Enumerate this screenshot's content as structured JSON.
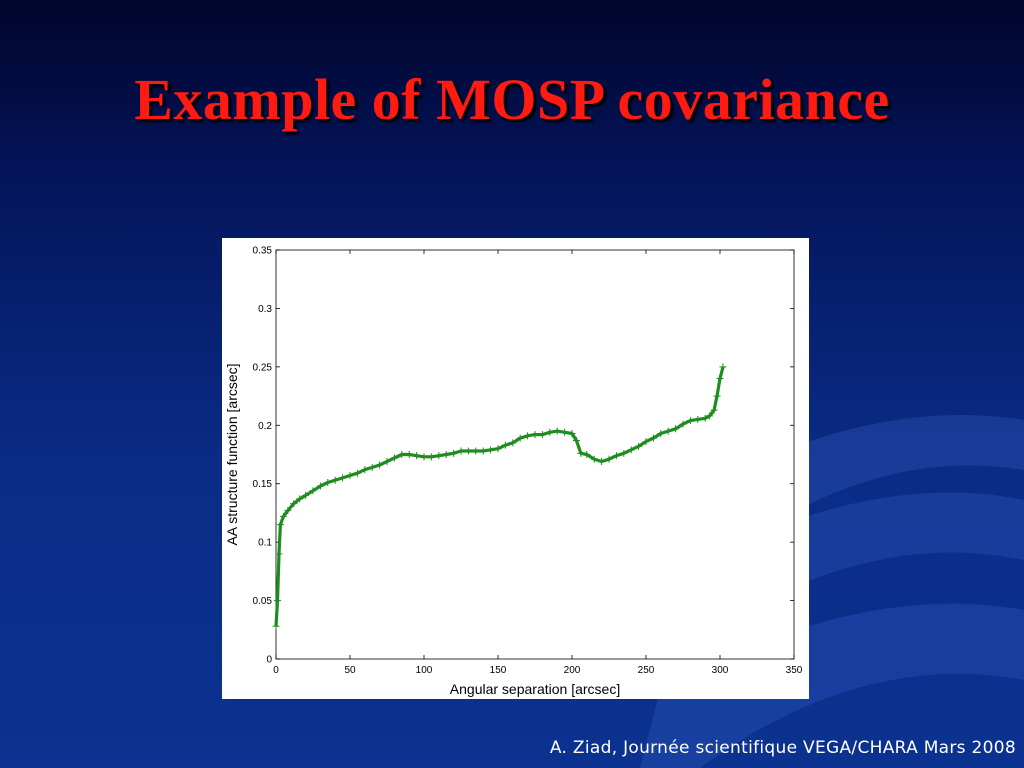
{
  "slide": {
    "title": "Example of MOSP covariance",
    "footer": "A. Ziad, Journée scientifique VEGA/CHARA Mars 2008"
  },
  "colors": {
    "title": "#ff1a12",
    "series": "#1e8c1e"
  },
  "chart_data": {
    "type": "line",
    "xlabel": "Angular separation [arcsec]",
    "ylabel": "AA structure function [arcsec]",
    "xlim": [
      0,
      350
    ],
    "ylim": [
      0,
      0.35
    ],
    "xticks": [
      "0",
      "50",
      "100",
      "150",
      "200",
      "250",
      "300",
      "350"
    ],
    "yticks": [
      "0",
      "0.05",
      "0.1",
      "0.15",
      "0.2",
      "0.25",
      "0.3",
      "0.35"
    ],
    "grid": false,
    "marker": "plus",
    "series": [
      {
        "x": [
          0,
          1,
          2,
          3,
          5,
          8,
          12,
          16,
          20,
          25,
          30,
          35,
          40,
          45,
          50,
          55,
          60,
          65,
          70,
          75,
          80,
          85,
          90,
          95,
          100,
          105,
          110,
          115,
          120,
          125,
          130,
          135,
          140,
          145,
          150,
          155,
          160,
          165,
          170,
          175,
          180,
          185,
          190,
          195,
          200,
          203,
          206,
          210,
          215,
          220,
          225,
          230,
          235,
          240,
          245,
          250,
          255,
          260,
          265,
          270,
          275,
          280,
          285,
          290,
          293,
          296,
          298,
          300,
          302
        ],
        "y": [
          0.028,
          0.05,
          0.09,
          0.115,
          0.122,
          0.127,
          0.133,
          0.137,
          0.14,
          0.144,
          0.148,
          0.151,
          0.153,
          0.155,
          0.157,
          0.159,
          0.162,
          0.164,
          0.166,
          0.169,
          0.172,
          0.175,
          0.175,
          0.174,
          0.173,
          0.173,
          0.174,
          0.175,
          0.176,
          0.178,
          0.178,
          0.178,
          0.178,
          0.179,
          0.18,
          0.183,
          0.185,
          0.189,
          0.191,
          0.192,
          0.192,
          0.194,
          0.195,
          0.194,
          0.193,
          0.187,
          0.176,
          0.175,
          0.171,
          0.169,
          0.171,
          0.174,
          0.176,
          0.179,
          0.182,
          0.186,
          0.189,
          0.193,
          0.195,
          0.197,
          0.201,
          0.204,
          0.205,
          0.206,
          0.208,
          0.213,
          0.225,
          0.24,
          0.25
        ]
      }
    ]
  }
}
